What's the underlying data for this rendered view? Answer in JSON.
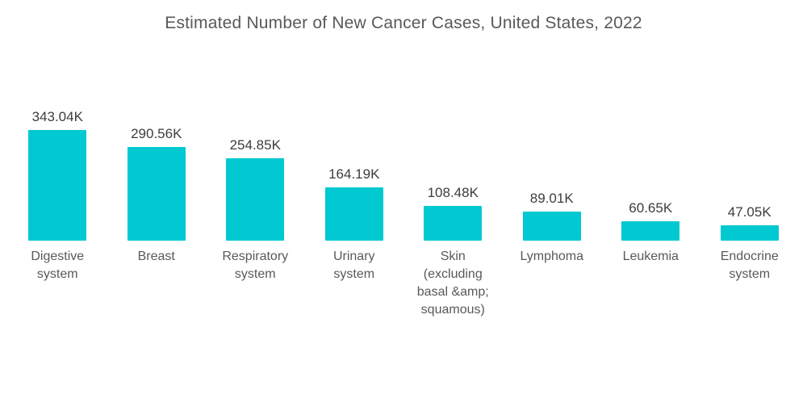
{
  "chart_data": {
    "type": "bar",
    "title": "Estimated Number of New Cancer Cases, United States, 2022",
    "categories": [
      "Digestive system",
      "Breast",
      "Respiratory system",
      "Urinary system",
      "Skin (excluding basal &amp; squamous)",
      "Lymphoma",
      "Leukemia",
      "Endocrine system"
    ],
    "category_display": [
      "Digestive\nsystem",
      "Breast",
      "Respiratory\nsystem",
      "Urinary\nsystem",
      "Skin\n(excluding\nbasal &amp;\nsquamous)",
      "Lymphoma",
      "Leukemia",
      "Endocrine\nsystem"
    ],
    "values": [
      343.04,
      290.56,
      254.85,
      164.19,
      108.48,
      89.01,
      60.65,
      47.05
    ],
    "value_labels": [
      "343.04K",
      "290.56K",
      "254.85K",
      "164.19K",
      "108.48K",
      "89.01K",
      "60.65K",
      "47.05K"
    ],
    "unit": "K",
    "xlabel": "",
    "ylabel": "",
    "ylim": [
      0,
      360
    ],
    "grid": false,
    "legend": false,
    "axes_visible": false,
    "value_label_position": "above-bar"
  },
  "colors": {
    "bar_fill": "#00C9D2",
    "title_text": "#595959",
    "value_text": "#3d3d3d",
    "category_text": "#595959",
    "background": "#ffffff"
  }
}
